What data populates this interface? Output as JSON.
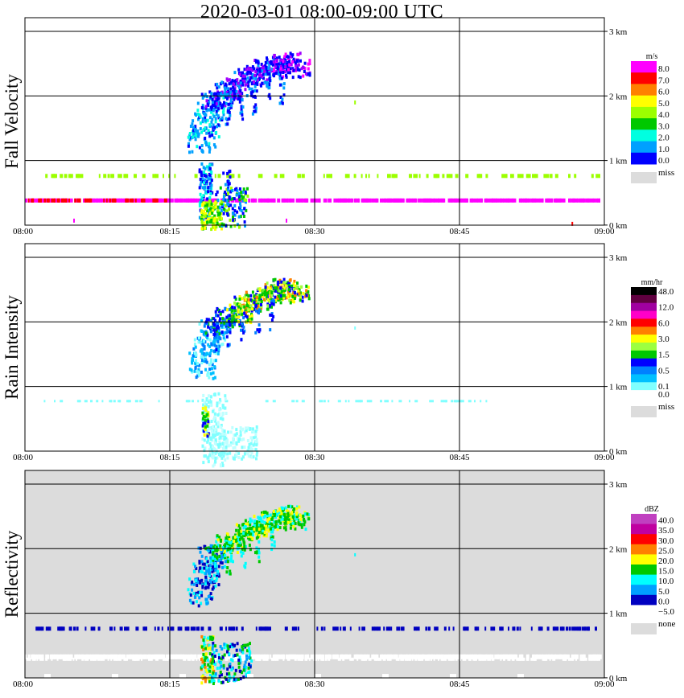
{
  "title": "2020-03-01   08:00-09:00 UTC",
  "time_ticks": [
    "08:00",
    "08:15",
    "08:30",
    "08:45",
    "09:00"
  ],
  "height_ticks": [
    "0 km",
    "1 km",
    "2 km",
    "3 km"
  ],
  "panels": [
    {
      "id": "fall-velocity",
      "ylabel": "Fall Velocity",
      "unit": "m/s",
      "background": "#ffffff",
      "legend": [
        {
          "label": "8.0",
          "color": "#ff00ff"
        },
        {
          "label": "7.0",
          "color": "#ff0000"
        },
        {
          "label": "6.0",
          "color": "#ff8000"
        },
        {
          "label": "5.0",
          "color": "#ffff00"
        },
        {
          "label": "4.0",
          "color": "#9cff00"
        },
        {
          "label": "3.0",
          "color": "#00c800"
        },
        {
          "label": "2.0",
          "color": "#00ffe0"
        },
        {
          "label": "1.0",
          "color": "#00a0ff"
        },
        {
          "label": "0.0",
          "color": "#0000ff"
        }
      ],
      "miss_label": "miss"
    },
    {
      "id": "rain-intensity",
      "ylabel": "Rain Intensity",
      "unit": "mm/hr",
      "background": "#ffffff",
      "legend": [
        {
          "label": "48.0",
          "color": "#000000"
        },
        {
          "label": "",
          "color": "#600040"
        },
        {
          "label": "12.0",
          "color": "#a000a0"
        },
        {
          "label": "",
          "color": "#ff00c8"
        },
        {
          "label": "6.0",
          "color": "#ff0000"
        },
        {
          "label": "",
          "color": "#ff8000"
        },
        {
          "label": "3.0",
          "color": "#ffff00"
        },
        {
          "label": "",
          "color": "#9cff40"
        },
        {
          "label": "1.5",
          "color": "#00c800"
        },
        {
          "label": "",
          "color": "#0000ff"
        },
        {
          "label": "0.5",
          "color": "#0080ff"
        },
        {
          "label": "",
          "color": "#00c0ff"
        },
        {
          "label": "0.1",
          "color": "#80ffff"
        },
        {
          "label": "0.0",
          "color": "#ffffff"
        }
      ],
      "miss_label": "miss"
    },
    {
      "id": "reflectivity",
      "ylabel": "Reflectivity",
      "unit": "dBZ",
      "background": "#dcdcdc",
      "legend": [
        {
          "label": "40.0",
          "color": "#c040c0"
        },
        {
          "label": "35.0",
          "color": "#c000a0"
        },
        {
          "label": "30.0",
          "color": "#ff0000"
        },
        {
          "label": "25.0",
          "color": "#ff8000"
        },
        {
          "label": "20.0",
          "color": "#ffff00"
        },
        {
          "label": "15.0",
          "color": "#00c800"
        },
        {
          "label": "10.0",
          "color": "#00ffff"
        },
        {
          "label": "5.0",
          "color": "#00a0ff"
        },
        {
          "label": "0.0",
          "color": "#0000c0"
        },
        {
          "label": "−5.0",
          "color": "#ffffff"
        }
      ],
      "miss_label": "none"
    }
  ],
  "chart_data": {
    "type": "heatmap",
    "title": "2020-03-01   08:00-09:00 UTC",
    "x_range": [
      "08:00",
      "09:00"
    ],
    "y_range_km": [
      0,
      3.2
    ],
    "grid": true,
    "series": [
      {
        "name": "Fall Velocity",
        "features": [
          {
            "t": 18.2,
            "z": 1.5,
            "v": 1.5
          },
          {
            "t": 19.0,
            "z": 1.9,
            "v": 0.5
          },
          {
            "t": 21.0,
            "z": 2.1,
            "v": 0.5
          },
          {
            "t": 23.0,
            "z": 2.3,
            "v": 0.5
          },
          {
            "t": 25.5,
            "z": 2.5,
            "v": 0.5
          },
          {
            "t": 27.5,
            "z": 2.5,
            "v": 7.5
          },
          {
            "t": 19.0,
            "z": 0.3,
            "v": 4.5
          },
          {
            "t": 20.5,
            "z": 0.4,
            "v": 3.5
          }
        ]
      },
      {
        "name": "Rain Intensity",
        "features": [
          {
            "t": 18.5,
            "z": 1.4,
            "v": 0.3
          },
          {
            "t": 21.0,
            "z": 2.1,
            "v": 0.4
          },
          {
            "t": 23.5,
            "z": 2.3,
            "v": 3.0
          },
          {
            "t": 25.5,
            "z": 2.5,
            "v": 1.5
          },
          {
            "t": 18.8,
            "z": 0.45,
            "v": 3.0
          },
          {
            "t": 21.5,
            "z": 0.3,
            "v": 0.1
          }
        ]
      },
      {
        "name": "Reflectivity",
        "features": [
          {
            "t": 18.5,
            "z": 1.4,
            "v": 7.5
          },
          {
            "t": 21.0,
            "z": 2.1,
            "v": 12.5
          },
          {
            "t": 24.0,
            "z": 2.3,
            "v": 17.5
          },
          {
            "t": 26.5,
            "z": 2.5,
            "v": 17.5
          },
          {
            "t": 18.8,
            "z": 0.3,
            "v": 22.5
          },
          {
            "t": 21.0,
            "z": 0.2,
            "v": 7.5
          }
        ]
      }
    ]
  }
}
